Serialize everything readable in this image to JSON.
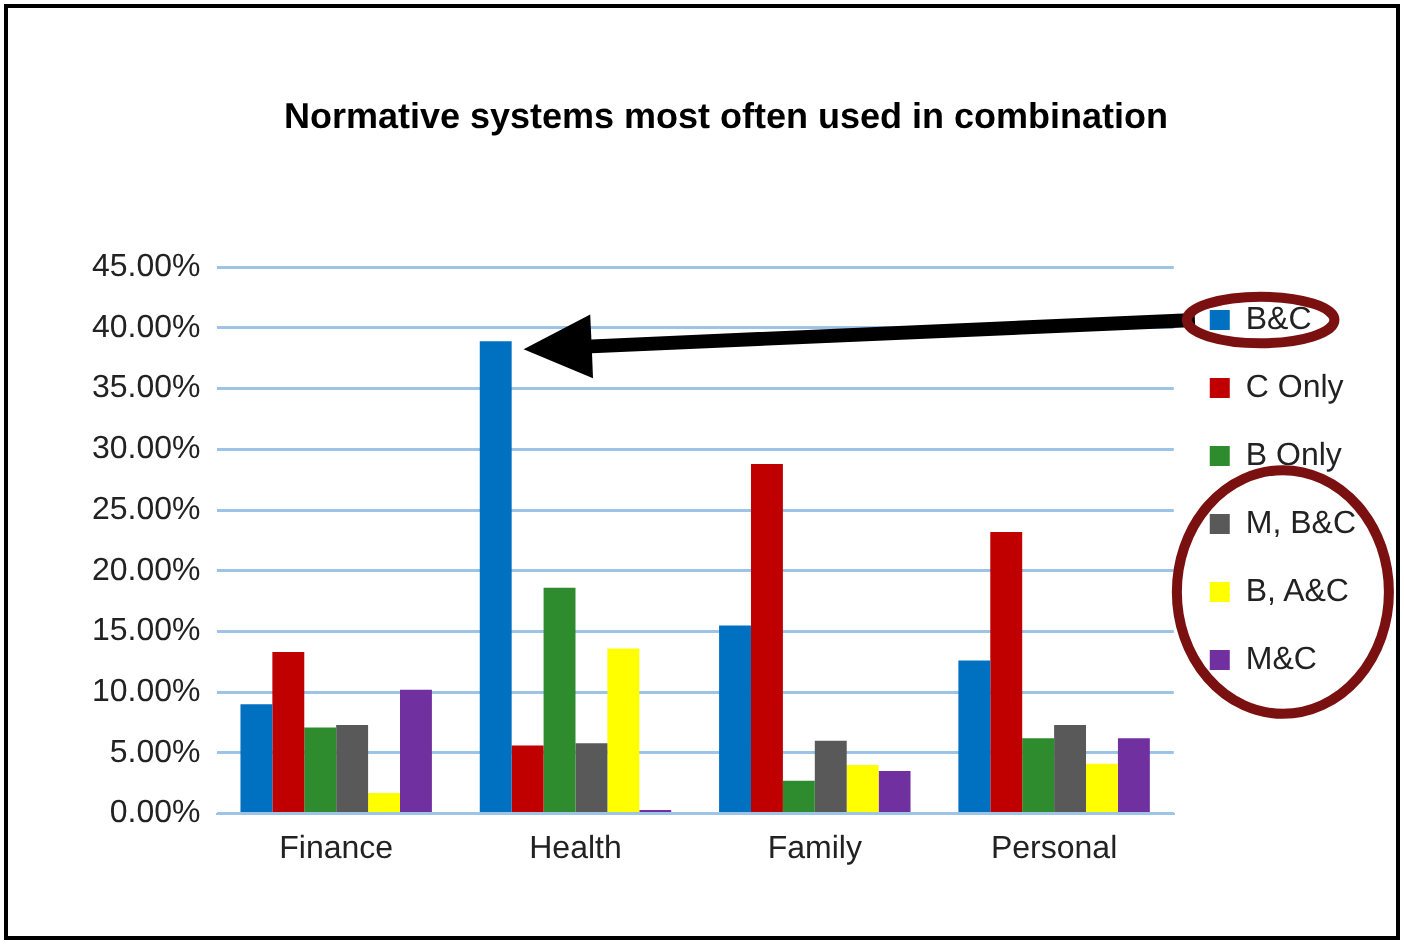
{
  "chart_data": {
    "type": "bar",
    "title": "Normative systems most often used in combination",
    "categories": [
      "Finance",
      "Health",
      "Family",
      "Personal"
    ],
    "series": [
      {
        "name": "B&C",
        "color": "#0070c0",
        "values": [
          9.0,
          38.9,
          15.5,
          12.6
        ]
      },
      {
        "name": "C Only",
        "color": "#c00000",
        "values": [
          13.3,
          5.6,
          28.8,
          23.2
        ]
      },
      {
        "name": "B Only",
        "color": "#2e8b2e",
        "values": [
          7.1,
          18.6,
          2.7,
          6.2
        ]
      },
      {
        "name": "M, B&C",
        "color": "#595959",
        "values": [
          7.3,
          5.8,
          6.0,
          7.3
        ]
      },
      {
        "name": "B, A&C",
        "color": "#ffff00",
        "values": [
          1.7,
          13.6,
          4.0,
          4.1
        ]
      },
      {
        "name": "M&C",
        "color": "#7030a0",
        "values": [
          10.2,
          0.3,
          3.5,
          6.2
        ]
      }
    ],
    "ylim": [
      0,
      45
    ],
    "yticks": [
      {
        "value": 0,
        "label": "0.00%"
      },
      {
        "value": 5,
        "label": "5.00%"
      },
      {
        "value": 10,
        "label": "10.00%"
      },
      {
        "value": 15,
        "label": "15.00%"
      },
      {
        "value": 20,
        "label": "20.00%"
      },
      {
        "value": 25,
        "label": "25.00%"
      },
      {
        "value": 30,
        "label": "30.00%"
      },
      {
        "value": 35,
        "label": "35.00%"
      },
      {
        "value": 40,
        "label": "40.00%"
      },
      {
        "value": 45,
        "label": "45.00%"
      }
    ],
    "grid": "y",
    "legend": "right"
  }
}
